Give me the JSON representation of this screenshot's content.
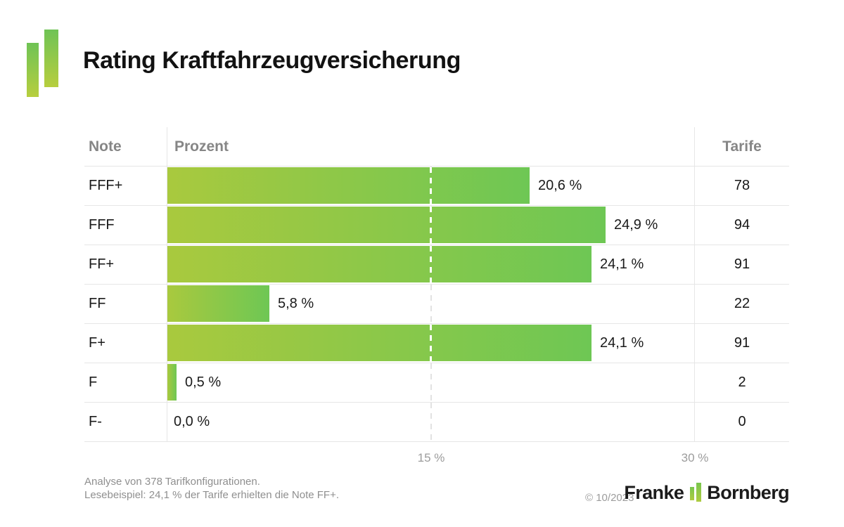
{
  "title": "Rating Kraftfahrzeugversicherung",
  "table": {
    "headers": {
      "note": "Note",
      "prozent": "Prozent",
      "tarife": "Tarife"
    },
    "rows": [
      {
        "note": "FFF+",
        "prozent": 20.6,
        "prozent_label": "20,6 %",
        "tarife": "78"
      },
      {
        "note": "FFF",
        "prozent": 24.9,
        "prozent_label": "24,9 %",
        "tarife": "94"
      },
      {
        "note": "FF+",
        "prozent": 24.1,
        "prozent_label": "24,1 %",
        "tarife": "91"
      },
      {
        "note": "FF",
        "prozent": 5.8,
        "prozent_label": "5,8 %",
        "tarife": "22"
      },
      {
        "note": "F+",
        "prozent": 24.1,
        "prozent_label": "24,1 %",
        "tarife": "91"
      },
      {
        "note": "F",
        "prozent": 0.5,
        "prozent_label": "0,5 %",
        "tarife": "2"
      },
      {
        "note": "F-",
        "prozent": 0.0,
        "prozent_label": "0,0 %",
        "tarife": "0"
      }
    ]
  },
  "axis": {
    "ticks": [
      {
        "label": "15 %",
        "value": 15
      },
      {
        "label": "30 %",
        "value": 30
      }
    ],
    "max_visible_percent": 30
  },
  "footnotes": {
    "line1": "Analyse von 378 Tarifkonfigurationen.",
    "line2": "Lesebeispiel: 24,1 % der Tarife erhielten die Note FF+."
  },
  "copyright": "© 10/2023",
  "brand": {
    "left": "Franke",
    "right": "Bornberg"
  },
  "colors": {
    "bar_gradient_start": "#a9c93e",
    "bar_gradient_end": "#6ec754",
    "logo_gradient_top": "#6fc355",
    "logo_gradient_bottom": "#b7ce3e",
    "grid_line": "#e6e6e6",
    "header_text": "#868686",
    "muted_text": "#8f8f8f",
    "body_text": "#1a1a1a"
  },
  "chart_data": {
    "type": "bar",
    "orientation": "horizontal",
    "title": "Rating Kraftfahrzeugversicherung",
    "categories": [
      "FFF+",
      "FFF",
      "FF+",
      "FF",
      "F+",
      "F",
      "F-"
    ],
    "series": [
      {
        "name": "Prozent",
        "values": [
          20.6,
          24.9,
          24.1,
          5.8,
          24.1,
          0.5,
          0.0
        ]
      },
      {
        "name": "Tarife",
        "values": [
          78,
          94,
          91,
          22,
          91,
          2,
          0
        ]
      }
    ],
    "xlabel": "Prozent",
    "xlim": [
      0,
      35.4
    ],
    "xticks": [
      15,
      30
    ],
    "grid": "dashed line at 15 %, solid line at 30 %",
    "legend_position": "none",
    "annotations": [
      "Analyse von 378 Tarifkonfigurationen.",
      "Lesebeispiel: 24,1 % der Tarife erhielten die Note FF+."
    ]
  }
}
